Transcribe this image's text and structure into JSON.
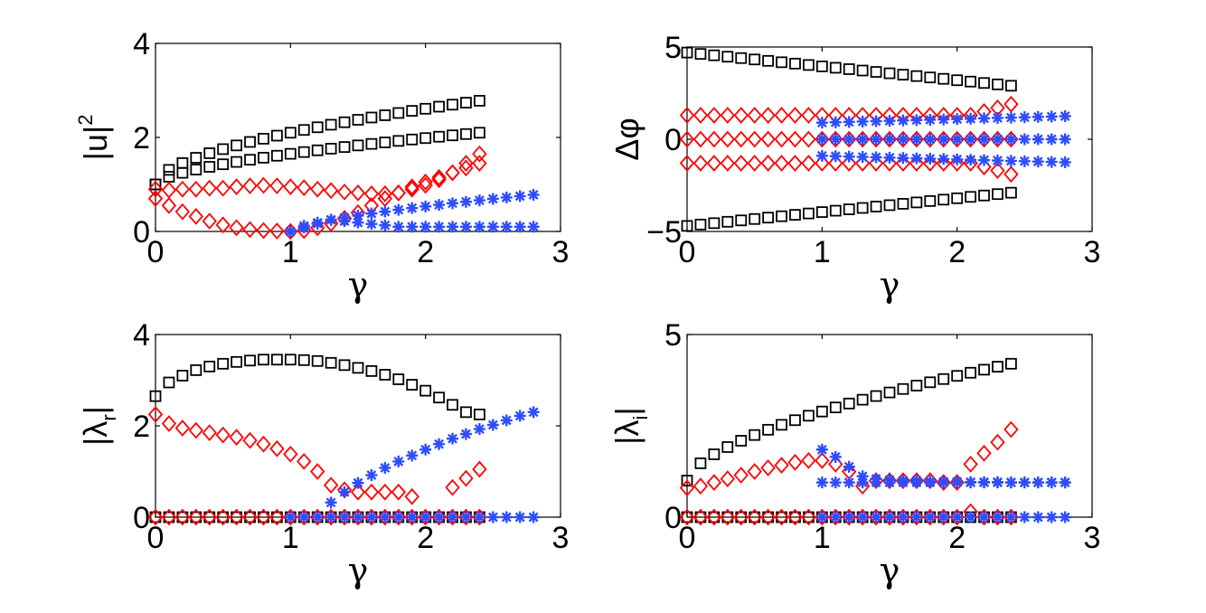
{
  "figure": {
    "background": "#ffffff"
  },
  "styles": {
    "square": {
      "color": "#000000",
      "marker": "square"
    },
    "diamond": {
      "color": "#ff0000",
      "marker": "diamond"
    },
    "star": {
      "color": "#2e4dff",
      "marker": "asterisk"
    }
  },
  "chart_data": [
    {
      "id": "top-left",
      "type": "scatter",
      "xlabel": "γ",
      "ylabel": {
        "base": "|u|",
        "sup": "2"
      },
      "xlim": [
        0,
        3
      ],
      "ylim": [
        0,
        4
      ],
      "xticks": [
        0,
        1,
        2,
        3
      ],
      "yticks": [
        0,
        2,
        4
      ],
      "series": [
        {
          "style": "square",
          "x0": 0,
          "x1": 2.4,
          "n": 25,
          "fn": "sqr",
          "y0": 1.0,
          "y1": 2.78,
          "p": 0.55
        },
        {
          "style": "square",
          "x0": 0,
          "x1": 2.4,
          "n": 25,
          "fn": "sqr",
          "y0": 1.0,
          "y1": 2.1,
          "p": 0.6
        },
        {
          "style": "diamond",
          "points": [
            [
              0,
              0.9
            ],
            [
              0.1,
              0.88
            ],
            [
              0.2,
              0.9
            ],
            [
              0.3,
              0.9
            ],
            [
              0.4,
              0.92
            ],
            [
              0.5,
              0.92
            ],
            [
              0.6,
              0.95
            ],
            [
              0.7,
              0.97
            ],
            [
              0.8,
              0.98
            ],
            [
              0.9,
              0.97
            ],
            [
              1.0,
              0.95
            ],
            [
              1.1,
              0.93
            ],
            [
              1.2,
              0.9
            ],
            [
              1.3,
              0.87
            ],
            [
              1.4,
              0.84
            ],
            [
              1.5,
              0.82
            ],
            [
              1.6,
              0.8
            ],
            [
              1.7,
              0.8
            ],
            [
              1.8,
              0.82
            ],
            [
              1.9,
              0.9
            ],
            [
              2.0,
              0.98
            ],
            [
              2.1,
              1.1
            ],
            [
              2.2,
              1.25
            ],
            [
              2.3,
              1.45
            ],
            [
              2.4,
              1.65
            ]
          ]
        },
        {
          "style": "diamond",
          "points": [
            [
              0,
              0.7
            ],
            [
              0.1,
              0.55
            ],
            [
              0.2,
              0.42
            ],
            [
              0.3,
              0.32
            ],
            [
              0.4,
              0.22
            ],
            [
              0.5,
              0.14
            ],
            [
              0.6,
              0.08
            ],
            [
              0.7,
              0.04
            ],
            [
              0.8,
              0.02
            ],
            [
              0.9,
              0.01
            ],
            [
              1.0,
              0.0
            ],
            [
              1.1,
              0.02
            ],
            [
              1.2,
              0.08
            ],
            [
              1.3,
              0.17
            ],
            [
              1.4,
              0.28
            ],
            [
              1.5,
              0.4
            ],
            [
              1.6,
              0.55
            ],
            [
              1.7,
              0.7
            ],
            [
              1.8,
              0.82
            ],
            [
              1.9,
              0.95
            ],
            [
              2.0,
              1.05
            ],
            [
              2.1,
              1.15
            ],
            [
              2.2,
              1.25
            ],
            [
              2.3,
              1.35
            ],
            [
              2.4,
              1.45
            ]
          ]
        },
        {
          "style": "star",
          "x0": 1.0,
          "x1": 2.8,
          "n": 19,
          "fn": "sqr",
          "y0": 0.0,
          "y1": 0.78,
          "p": 0.65
        },
        {
          "style": "star",
          "x0": 1.0,
          "x1": 2.8,
          "n": 19,
          "fn": "bump",
          "y0": 0.0,
          "y1": 0.1,
          "peak": 0.25,
          "px": 1.3
        }
      ]
    },
    {
      "id": "top-right",
      "type": "scatter",
      "xlabel": "γ",
      "ylabel": {
        "base": "Δφ"
      },
      "xlim": [
        0,
        3
      ],
      "ylim": [
        -5,
        5
      ],
      "xticks": [
        0,
        1,
        2,
        3
      ],
      "yticks": [
        -5,
        0,
        5
      ],
      "ytick_labels": [
        "−5",
        "0",
        "5"
      ],
      "series": [
        {
          "style": "square",
          "x0": 0,
          "x1": 2.4,
          "n": 25,
          "fn": "lin",
          "y0": 4.7,
          "y1": 2.9
        },
        {
          "style": "square",
          "x0": 0,
          "x1": 2.4,
          "n": 25,
          "fn": "lin",
          "y0": -4.7,
          "y1": -2.9
        },
        {
          "style": "diamond",
          "x0": 0,
          "x1": 2.4,
          "n": 25,
          "fn": "tail",
          "y0": 1.3,
          "y1": 1.9,
          "xs": 2.1
        },
        {
          "style": "diamond",
          "x0": 0,
          "x1": 2.4,
          "n": 25,
          "fn": "lin",
          "y0": 0.0,
          "y1": 0.0
        },
        {
          "style": "diamond",
          "x0": 0,
          "x1": 2.4,
          "n": 25,
          "fn": "tail",
          "y0": -1.3,
          "y1": -1.9,
          "xs": 2.1
        },
        {
          "style": "star",
          "x0": 1.0,
          "x1": 2.8,
          "n": 19,
          "fn": "lin",
          "y0": 0.9,
          "y1": 1.25
        },
        {
          "style": "star",
          "x0": 1.0,
          "x1": 2.8,
          "n": 19,
          "fn": "lin",
          "y0": 0.0,
          "y1": 0.0
        },
        {
          "style": "star",
          "x0": 1.0,
          "x1": 2.8,
          "n": 19,
          "fn": "lin",
          "y0": -0.9,
          "y1": -1.25
        }
      ]
    },
    {
      "id": "bottom-left",
      "type": "scatter",
      "xlabel": "γ",
      "ylabel": {
        "base": "|λ",
        "sub": "r",
        "end": "|"
      },
      "xlim": [
        0,
        3
      ],
      "ylim": [
        0,
        4
      ],
      "xticks": [
        0,
        1,
        2,
        3
      ],
      "yticks": [
        0,
        2,
        4
      ],
      "series": [
        {
          "style": "square",
          "points": [
            [
              0,
              2.65
            ],
            [
              0.1,
              2.95
            ],
            [
              0.2,
              3.1
            ],
            [
              0.3,
              3.22
            ],
            [
              0.4,
              3.3
            ],
            [
              0.5,
              3.36
            ],
            [
              0.6,
              3.4
            ],
            [
              0.7,
              3.43
            ],
            [
              0.8,
              3.45
            ],
            [
              0.9,
              3.45
            ],
            [
              1.0,
              3.45
            ],
            [
              1.1,
              3.44
            ],
            [
              1.2,
              3.42
            ],
            [
              1.3,
              3.38
            ],
            [
              1.4,
              3.33
            ],
            [
              1.5,
              3.27
            ],
            [
              1.6,
              3.2
            ],
            [
              1.7,
              3.12
            ],
            [
              1.8,
              3.02
            ],
            [
              1.9,
              2.9
            ],
            [
              2.0,
              2.77
            ],
            [
              2.1,
              2.62
            ],
            [
              2.2,
              2.46
            ],
            [
              2.3,
              2.3
            ],
            [
              2.4,
              2.25
            ]
          ]
        },
        {
          "style": "diamond",
          "points": [
            [
              0,
              2.25
            ],
            [
              0.1,
              2.05
            ],
            [
              0.2,
              1.95
            ],
            [
              0.3,
              1.9
            ],
            [
              0.4,
              1.85
            ],
            [
              0.5,
              1.8
            ],
            [
              0.6,
              1.75
            ],
            [
              0.7,
              1.68
            ],
            [
              0.8,
              1.6
            ],
            [
              0.9,
              1.5
            ],
            [
              1.0,
              1.38
            ],
            [
              1.1,
              1.22
            ],
            [
              1.2,
              1.0
            ],
            [
              1.3,
              0.7
            ],
            [
              1.4,
              0.6
            ],
            [
              1.5,
              0.55
            ],
            [
              1.6,
              0.55
            ],
            [
              1.7,
              0.55
            ],
            [
              1.8,
              0.55
            ],
            [
              1.9,
              0.45
            ],
            [
              2.2,
              0.65
            ],
            [
              2.3,
              0.85
            ],
            [
              2.4,
              1.05
            ]
          ]
        },
        {
          "style": "star",
          "points": [
            [
              1.3,
              0.32
            ],
            [
              1.4,
              0.55
            ],
            [
              1.5,
              0.75
            ],
            [
              1.6,
              0.92
            ],
            [
              1.7,
              1.08
            ],
            [
              1.8,
              1.22
            ],
            [
              1.9,
              1.35
            ],
            [
              2.0,
              1.48
            ],
            [
              2.1,
              1.6
            ],
            [
              2.2,
              1.72
            ],
            [
              2.3,
              1.82
            ],
            [
              2.4,
              1.93
            ],
            [
              2.5,
              2.02
            ],
            [
              2.6,
              2.12
            ],
            [
              2.7,
              2.22
            ],
            [
              2.8,
              2.3
            ]
          ]
        },
        {
          "style": "square",
          "x0": 0,
          "x1": 2.4,
          "n": 25,
          "fn": "lin",
          "y0": 0.0,
          "y1": 0.0
        },
        {
          "style": "diamond",
          "x0": 0,
          "x1": 2.4,
          "n": 25,
          "fn": "lin",
          "y0": 0.0,
          "y1": 0.0
        },
        {
          "style": "star",
          "x0": 1.0,
          "x1": 2.8,
          "n": 19,
          "fn": "lin",
          "y0": 0.0,
          "y1": 0.0
        }
      ]
    },
    {
      "id": "bottom-right",
      "type": "scatter",
      "xlabel": "γ",
      "ylabel": {
        "base": "|λ",
        "sub": "i",
        "end": "|"
      },
      "xlim": [
        0,
        3
      ],
      "ylim": [
        0,
        5
      ],
      "xticks": [
        0,
        1,
        2,
        3
      ],
      "yticks": [
        0,
        5
      ],
      "series": [
        {
          "style": "square",
          "x0": 0,
          "x1": 2.4,
          "n": 25,
          "fn": "sqr",
          "y0": 1.0,
          "y1": 4.2,
          "p": 0.6
        },
        {
          "style": "diamond",
          "points": [
            [
              0,
              0.8
            ],
            [
              0.1,
              0.85
            ],
            [
              0.2,
              0.95
            ],
            [
              0.3,
              1.05
            ],
            [
              0.4,
              1.15
            ],
            [
              0.5,
              1.25
            ],
            [
              0.6,
              1.35
            ],
            [
              0.7,
              1.42
            ],
            [
              0.8,
              1.5
            ],
            [
              0.9,
              1.55
            ],
            [
              1.0,
              1.55
            ],
            [
              1.1,
              1.45
            ],
            [
              1.2,
              1.25
            ],
            [
              1.3,
              0.85
            ],
            [
              1.4,
              1.0
            ],
            [
              1.5,
              1.0
            ],
            [
              1.6,
              1.0
            ],
            [
              1.7,
              1.0
            ],
            [
              1.8,
              1.0
            ],
            [
              1.9,
              0.95
            ],
            [
              2.0,
              0.95
            ],
            [
              2.1,
              1.45
            ],
            [
              2.2,
              1.75
            ],
            [
              2.3,
              2.05
            ],
            [
              2.4,
              2.4
            ]
          ]
        },
        {
          "style": "star",
          "points": [
            [
              1.0,
              1.85
            ],
            [
              1.1,
              1.65
            ],
            [
              1.2,
              1.38
            ],
            [
              1.3,
              1.12
            ],
            [
              1.4,
              1.05
            ],
            [
              1.5,
              1.02
            ],
            [
              1.6,
              1.0
            ],
            [
              1.7,
              1.0
            ],
            [
              1.8,
              0.98
            ],
            [
              1.9,
              0.97
            ],
            [
              2.0,
              0.97
            ],
            [
              2.1,
              0.96
            ],
            [
              2.2,
              0.96
            ],
            [
              2.3,
              0.96
            ],
            [
              2.4,
              0.95
            ],
            [
              2.5,
              0.95
            ],
            [
              2.6,
              0.95
            ],
            [
              2.7,
              0.95
            ],
            [
              2.8,
              0.95
            ]
          ]
        },
        {
          "style": "star",
          "x0": 1.0,
          "x1": 2.8,
          "n": 19,
          "fn": "lin",
          "y0": 0.95,
          "y1": 0.95
        },
        {
          "style": "square",
          "x0": 0,
          "x1": 2.4,
          "n": 25,
          "fn": "lin",
          "y0": 0.0,
          "y1": 0.0
        },
        {
          "style": "diamond",
          "points": [
            [
              0,
              0
            ],
            [
              0.1,
              0
            ],
            [
              0.2,
              0
            ],
            [
              0.3,
              0
            ],
            [
              0.4,
              0
            ],
            [
              0.5,
              0
            ],
            [
              0.6,
              0
            ],
            [
              0.7,
              0
            ],
            [
              0.8,
              0
            ],
            [
              0.9,
              0
            ],
            [
              1.0,
              0
            ],
            [
              1.1,
              0
            ],
            [
              1.2,
              0
            ],
            [
              1.3,
              0
            ],
            [
              1.4,
              0
            ],
            [
              1.5,
              0
            ],
            [
              1.6,
              0
            ],
            [
              1.7,
              0
            ],
            [
              1.8,
              0
            ],
            [
              1.9,
              0
            ],
            [
              2.0,
              0
            ],
            [
              2.1,
              0.15
            ],
            [
              2.2,
              0
            ],
            [
              2.3,
              0
            ],
            [
              2.4,
              0
            ]
          ]
        },
        {
          "style": "star",
          "x0": 1.0,
          "x1": 2.8,
          "n": 19,
          "fn": "lin",
          "y0": 0.0,
          "y1": 0.0
        }
      ]
    }
  ]
}
